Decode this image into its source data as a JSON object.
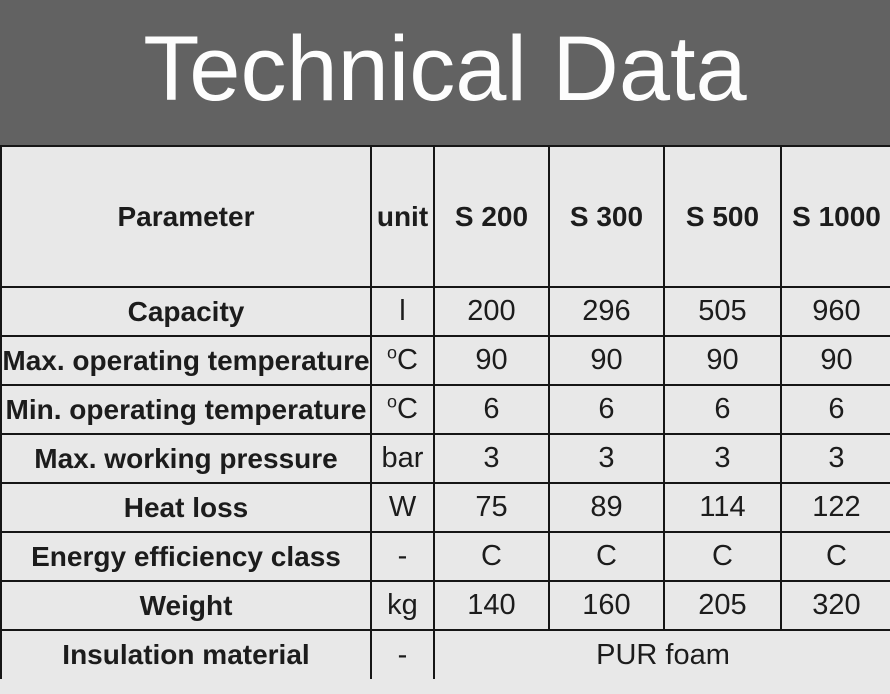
{
  "banner": {
    "title": "Technical Data",
    "bg_color": "#626262",
    "text_color": "#fdfdfd"
  },
  "table": {
    "cell_bg_color": "#e8e8e8",
    "border_color": "#161616",
    "text_color": "#1c1c1c",
    "header": {
      "parameter_label": "Parameter",
      "unit_label": "unit",
      "models": [
        "S 200",
        "S 300",
        "S 500",
        "S 1000"
      ]
    },
    "rows": [
      {
        "parameter": "Capacity",
        "unit": "l",
        "values": [
          "200",
          "296",
          "505",
          "960"
        ]
      },
      {
        "parameter": "Max. operating temperature",
        "unit": "°C",
        "values": [
          "90",
          "90",
          "90",
          "90"
        ]
      },
      {
        "parameter": "Min. operating temperature",
        "unit": "°C",
        "values": [
          "6",
          "6",
          "6",
          "6"
        ]
      },
      {
        "parameter": "Max. working pressure",
        "unit": "bar",
        "values": [
          "3",
          "3",
          "3",
          "3"
        ]
      },
      {
        "parameter": "Heat loss",
        "unit": "W",
        "values": [
          "75",
          "89",
          "114",
          "122"
        ]
      },
      {
        "parameter": "Energy efficiency class",
        "unit": "-",
        "values": [
          "C",
          "C",
          "C",
          "C"
        ]
      },
      {
        "parameter": "Weight",
        "unit": "kg",
        "values": [
          "140",
          "160",
          "205",
          "320"
        ]
      },
      {
        "parameter": "Insulation material",
        "unit": "-",
        "merged_value": "PUR foam"
      }
    ]
  }
}
